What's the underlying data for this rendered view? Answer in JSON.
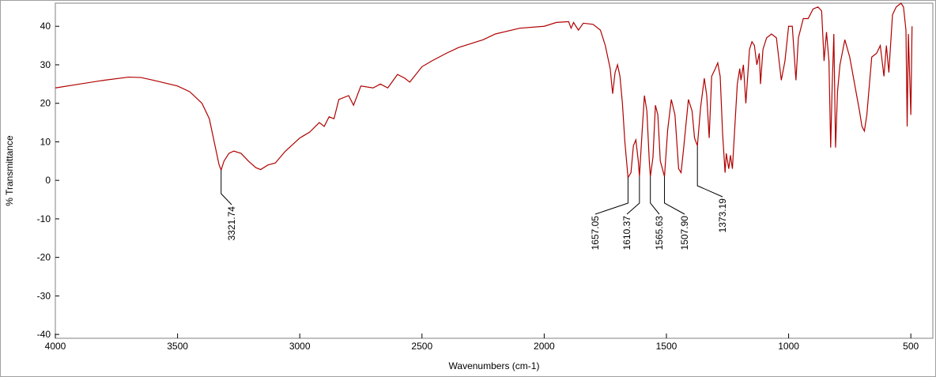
{
  "chart_data": {
    "type": "line",
    "xlabel": "Wavenumbers (cm-1)",
    "ylabel": "% Transmittance",
    "color": "#b00000",
    "xlim": [
      4000,
      410
    ],
    "ylim": [
      -41,
      46
    ],
    "xticks": [
      4000,
      3500,
      3000,
      2500,
      2000,
      1500,
      1000,
      500
    ],
    "yticks": [
      -40,
      -30,
      -20,
      -10,
      0,
      10,
      20,
      30,
      40
    ],
    "grid": false,
    "x": [
      4000,
      3900,
      3800,
      3700,
      3650,
      3600,
      3500,
      3450,
      3400,
      3370,
      3350,
      3330,
      3321.74,
      3310,
      3290,
      3270,
      3240,
      3210,
      3180,
      3160,
      3130,
      3100,
      3060,
      3000,
      2960,
      2920,
      2900,
      2880,
      2860,
      2840,
      2800,
      2780,
      2750,
      2700,
      2670,
      2640,
      2600,
      2570,
      2550,
      2500,
      2460,
      2400,
      2350,
      2300,
      2250,
      2200,
      2100,
      2000,
      1950,
      1900,
      1890,
      1880,
      1860,
      1840,
      1800,
      1770,
      1750,
      1730,
      1720,
      1710,
      1700,
      1690,
      1680,
      1670,
      1657.05,
      1645,
      1635,
      1625,
      1615,
      1610.37,
      1600,
      1590,
      1580,
      1570,
      1565.63,
      1555,
      1545,
      1535,
      1525,
      1507.9,
      1495,
      1480,
      1465,
      1450,
      1440,
      1430,
      1410,
      1395,
      1385,
      1373.19,
      1360,
      1345,
      1335,
      1325,
      1315,
      1300,
      1290,
      1280,
      1270,
      1260,
      1255,
      1245,
      1238,
      1230,
      1220,
      1210,
      1200,
      1195,
      1185,
      1175,
      1160,
      1150,
      1140,
      1130,
      1120,
      1115,
      1105,
      1090,
      1070,
      1050,
      1030,
      1015,
      1000,
      985,
      970,
      960,
      940,
      920,
      900,
      880,
      865,
      855,
      845,
      835,
      828,
      822,
      815,
      808,
      800,
      790,
      770,
      750,
      730,
      710,
      700,
      690,
      680,
      660,
      640,
      625,
      610,
      600,
      590,
      575,
      560,
      540,
      530,
      520,
      515,
      510,
      500,
      495
    ],
    "values": [
      24,
      25,
      26,
      26.8,
      26.7,
      26,
      24.5,
      23,
      20,
      16,
      10,
      4,
      2.7,
      5,
      7,
      7.6,
      7,
      5,
      3.3,
      2.8,
      4,
      4.5,
      7.5,
      11,
      12.5,
      15,
      14,
      16.5,
      16,
      21,
      22,
      19.5,
      24.5,
      24,
      25,
      24,
      27.5,
      26.5,
      25.5,
      29.5,
      31,
      33,
      34.5,
      35.5,
      36.5,
      38,
      39.5,
      40,
      41,
      41.2,
      39.5,
      41,
      39,
      40.8,
      40.5,
      39,
      35,
      29,
      22.5,
      28,
      30,
      27,
      20,
      10,
      0.7,
      2,
      9,
      10.5,
      5,
      1,
      12,
      22,
      18,
      5,
      1,
      6,
      19.5,
      17,
      5,
      1,
      13,
      21,
      17,
      3,
      2,
      8,
      21,
      18,
      11,
      9,
      19,
      26.5,
      22,
      11,
      27,
      29,
      30.5,
      27,
      12,
      2,
      7,
      3,
      6.5,
      3,
      14,
      25,
      29,
      26,
      30,
      20,
      34,
      36,
      35,
      30,
      33,
      25,
      34,
      37,
      38,
      37,
      26,
      31,
      40,
      40,
      26,
      37,
      42,
      42,
      44.5,
      45,
      44,
      31,
      38.5,
      31,
      8.5,
      24,
      38,
      8.5,
      23,
      30,
      36.5,
      32,
      25,
      18,
      14,
      12.8,
      17,
      32,
      33,
      35,
      27,
      35,
      28,
      43,
      45,
      46,
      45,
      39,
      14,
      38,
      17,
      40
    ],
    "peaks": [
      {
        "value": 3321.74,
        "label": "3321.74"
      },
      {
        "value": 1657.05,
        "label": "1657.05"
      },
      {
        "value": 1610.37,
        "label": "1610.37"
      },
      {
        "value": 1565.63,
        "label": "1565.63"
      },
      {
        "value": 1507.9,
        "label": "1507.90"
      },
      {
        "value": 1373.19,
        "label": "1373.19"
      }
    ]
  }
}
